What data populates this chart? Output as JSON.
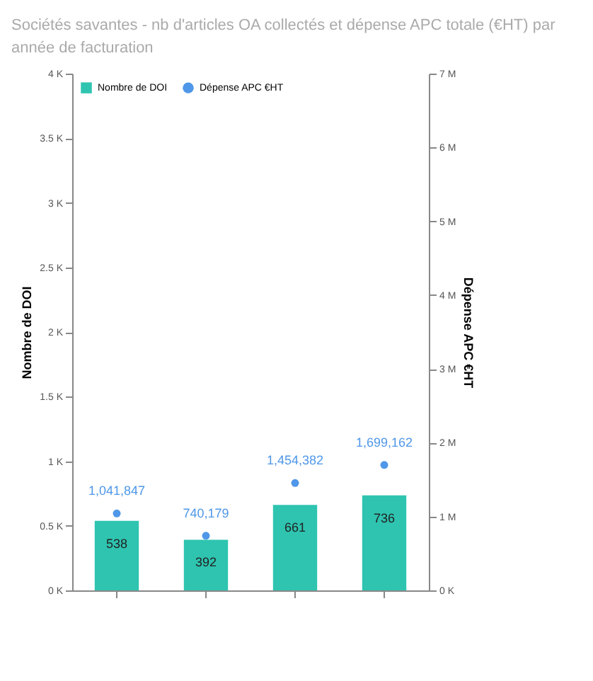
{
  "chart_data": {
    "type": "bar",
    "title": "Sociétés savantes - nb d'articles OA collectés et dépense APC totale (€HT) par année de facturation",
    "categories": [
      null,
      null,
      null,
      null
    ],
    "series": [
      {
        "name": "Nombre de DOI",
        "color": "#2ec4b0",
        "values": [
          538,
          392,
          661,
          736
        ]
      },
      {
        "name": "Dépense APC €HT",
        "type": "scatter",
        "axis": "y2",
        "color": "#4f97e8",
        "values": [
          1041847,
          740179,
          1454382,
          1699162
        ],
        "value_labels": [
          "1,041,847",
          "740,179",
          "1,454,382",
          "1,699,162"
        ]
      }
    ],
    "ylabel": "Nombre de DOI",
    "y2label": "Dépense APC €HT",
    "ylim": [
      0,
      4000
    ],
    "yticks": [
      {
        "value": 0,
        "label": "0 K"
      },
      {
        "value": 500,
        "label": "0.5 K"
      },
      {
        "value": 1000,
        "label": "1 K"
      },
      {
        "value": 1500,
        "label": "1.5 K"
      },
      {
        "value": 2000,
        "label": "2 K"
      },
      {
        "value": 2500,
        "label": "2.5 K"
      },
      {
        "value": 3000,
        "label": "3 K"
      },
      {
        "value": 3500,
        "label": "3.5 K"
      },
      {
        "value": 4000,
        "label": "4 K"
      }
    ],
    "y2lim": [
      0,
      7000000
    ],
    "y2ticks": [
      {
        "value": 0,
        "label": "0 K"
      },
      {
        "value": 1000000,
        "label": "1 M"
      },
      {
        "value": 2000000,
        "label": "2 M"
      },
      {
        "value": 3000000,
        "label": "3 M"
      },
      {
        "value": 4000000,
        "label": "4 M"
      },
      {
        "value": 5000000,
        "label": "5 M"
      },
      {
        "value": 6000000,
        "label": "6 M"
      },
      {
        "value": 7000000,
        "label": "7 M"
      }
    ],
    "data_labels": true,
    "legend": "top left",
    "marker": "circle",
    "tick_labels": "y"
  }
}
